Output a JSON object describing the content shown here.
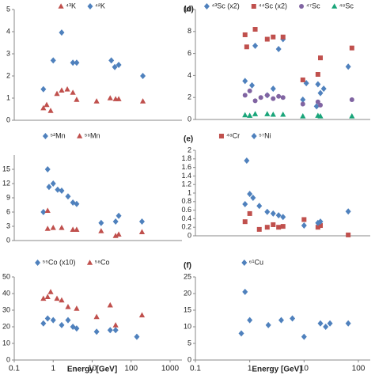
{
  "chart_data": [
    {
      "type": "scatter",
      "xscale": "log",
      "xlim": [
        0.1,
        1000
      ],
      "ylim": [
        0,
        5
      ],
      "yticks": [
        0,
        1,
        2,
        3,
        4,
        5
      ],
      "series": [
        {
          "name": "⁴³K",
          "color": "#c0504d",
          "marker": "triangle",
          "x": [
            0.56,
            0.68,
            0.86,
            1.25,
            1.65,
            2.3,
            3.2,
            4.0,
            13,
            29,
            40,
            48,
            200
          ],
          "values": [
            0.55,
            0.7,
            0.43,
            1.2,
            1.35,
            1.4,
            1.25,
            0.93,
            0.86,
            1.0,
            0.96,
            0.96,
            0.86
          ]
        },
        {
          "name": "⁴²K",
          "color": "#4f81bd",
          "marker": "diamond",
          "x": [
            0.56,
            1.0,
            1.65,
            3.2,
            4.0,
            31,
            38,
            48,
            200
          ],
          "values": [
            1.4,
            2.7,
            3.96,
            2.6,
            2.6,
            2.7,
            2.4,
            2.5,
            2.0
          ]
        }
      ]
    },
    {
      "type": "scatter",
      "xscale": "log",
      "xlim": [
        0.1,
        1000
      ],
      "ylim": [
        0,
        18
      ],
      "yticks": [
        0,
        3,
        6,
        9,
        12,
        15
      ],
      "series": [
        {
          "name": "⁵²Mn",
          "color": "#4f81bd",
          "marker": "diamond",
          "x": [
            0.56,
            0.72,
            0.78,
            1.0,
            1.3,
            1.65,
            2.4,
            3.2,
            4.0,
            17,
            40,
            48,
            190
          ],
          "values": [
            6,
            15,
            11.3,
            12,
            10.7,
            10.5,
            9.3,
            8,
            7.7,
            3.7,
            4,
            5.2,
            4
          ]
        },
        {
          "name": "⁵⁶Mn",
          "color": "#c0504d",
          "marker": "triangle",
          "x": [
            0.72,
            0.72,
            1.0,
            1.65,
            3.2,
            4.0,
            17,
            40,
            48,
            190
          ],
          "values": [
            6.3,
            2.5,
            2.7,
            2.7,
            2.3,
            2.3,
            2,
            1,
            1.3,
            1.8
          ]
        }
      ]
    },
    {
      "type": "scatter",
      "xscale": "log",
      "xlim": [
        0.1,
        1000
      ],
      "ylim": [
        0,
        50
      ],
      "yticks": [
        0,
        10,
        20,
        30,
        40,
        50
      ],
      "xticks": [
        0.1,
        1,
        10,
        100,
        1000
      ],
      "xlabel": "Energy [GeV]",
      "series": [
        {
          "name": "⁵⁵Co (x10)",
          "color": "#4f81bd",
          "marker": "diamond",
          "x": [
            0.56,
            0.72,
            1.0,
            1.65,
            2.4,
            3.2,
            4.0,
            13,
            29,
            40,
            140
          ],
          "values": [
            22,
            25,
            24,
            21,
            24,
            20,
            19,
            17,
            18,
            18,
            14
          ]
        },
        {
          "name": "⁵⁸Co",
          "color": "#c0504d",
          "marker": "triangle",
          "x": [
            0.56,
            0.72,
            0.86,
            1.25,
            1.65,
            2.4,
            4.0,
            13,
            29,
            40,
            190
          ],
          "values": [
            37,
            38,
            41,
            37,
            36,
            32,
            31,
            26,
            33,
            21,
            27
          ]
        }
      ]
    },
    {
      "type": "scatter",
      "xscale": "log",
      "panel_label": "(d)",
      "xlim": [
        0.1,
        100
      ],
      "ylim": [
        0,
        10
      ],
      "yticks": [
        0,
        2,
        4,
        6,
        8,
        10
      ],
      "series": [
        {
          "name": "⁴³Sc (x2)",
          "color": "#4f81bd",
          "marker": "diamond",
          "x": [
            0.82,
            1.1,
            1.26,
            2.1,
            2.7,
            3.4,
            4.1,
            9.5,
            11,
            17,
            18,
            20,
            23,
            65
          ],
          "values": [
            3.5,
            3.1,
            6.7,
            2.2,
            2.8,
            6.4,
            7.3,
            1.8,
            3.3,
            1.2,
            3.2,
            2.4,
            2.8,
            4.8
          ]
        },
        {
          "name": "⁴⁴Sc (x2)",
          "color": "#c0504d",
          "marker": "square",
          "x": [
            0.82,
            0.88,
            1.26,
            2.1,
            2.7,
            4.1,
            9.5,
            18,
            20,
            76
          ],
          "values": [
            7.7,
            6.6,
            8.2,
            7.3,
            7.5,
            7.5,
            3.6,
            4.1,
            5.6,
            6.5
          ]
        },
        {
          "name": "⁴⁷Sc",
          "color": "#8064a2",
          "marker": "circle",
          "x": [
            0.82,
            1.0,
            1.26,
            1.6,
            2.1,
            2.7,
            3.4,
            4.1,
            9.5,
            18,
            20,
            76
          ],
          "values": [
            2.2,
            2.6,
            1.7,
            2.0,
            2.2,
            1.9,
            2.1,
            2.0,
            1.4,
            1.6,
            1.3,
            1.8
          ]
        },
        {
          "name": "⁴⁸Sc",
          "color": "#1aa57a",
          "marker": "triangle",
          "x": [
            0.82,
            1.0,
            1.26,
            2.1,
            2.7,
            4.1,
            9.5,
            18,
            20,
            76
          ],
          "values": [
            0.4,
            0.35,
            0.5,
            0.5,
            0.45,
            0.45,
            0.3,
            0.35,
            0.3,
            0.3
          ]
        }
      ]
    },
    {
      "type": "scatter",
      "xscale": "log",
      "panel_label": "(e)",
      "xlim": [
        0.1,
        100
      ],
      "ylim": [
        0,
        2
      ],
      "yticks": [
        0,
        0.2,
        0.4,
        0.6,
        0.8,
        1,
        1.2,
        1.4,
        1.6,
        1.8,
        2
      ],
      "series": [
        {
          "name": "⁴⁸Cr",
          "color": "#c0504d",
          "marker": "square",
          "x": [
            0.82,
            1.0,
            1.5,
            2.1,
            2.7,
            3.4,
            4.1,
            10,
            18,
            20,
            65
          ],
          "values": [
            0.33,
            0.52,
            0.15,
            0.2,
            0.26,
            0.2,
            0.22,
            0.38,
            0.2,
            0.24,
            0.02
          ]
        },
        {
          "name": "⁵⁷Ni",
          "color": "#4f81bd",
          "marker": "diamond",
          "x": [
            0.82,
            0.88,
            1.0,
            1.15,
            1.5,
            2.1,
            2.7,
            3.4,
            4.1,
            10,
            18,
            20,
            65
          ],
          "values": [
            0.74,
            1.76,
            0.98,
            0.89,
            0.7,
            0.56,
            0.52,
            0.48,
            0.44,
            0.24,
            0.3,
            0.33,
            0.57
          ]
        }
      ]
    },
    {
      "type": "scatter",
      "xscale": "log",
      "panel_label": "(f)",
      "xlim": [
        0.1,
        100
      ],
      "ylim": [
        0,
        25
      ],
      "yticks": [
        0,
        5,
        10,
        15,
        20,
        25
      ],
      "xticks": [
        0.1,
        1,
        10,
        100
      ],
      "xlabel": "Energy [GeV]",
      "series": [
        {
          "name": "⁶¹Cu",
          "color": "#4f81bd",
          "marker": "diamond",
          "x": [
            0.7,
            0.82,
            1.0,
            2.2,
            3.8,
            6.1,
            10,
            20,
            25,
            30,
            65
          ],
          "values": [
            8,
            20.5,
            12,
            10.5,
            12,
            12.5,
            7,
            11,
            10,
            11,
            11
          ]
        }
      ]
    }
  ]
}
